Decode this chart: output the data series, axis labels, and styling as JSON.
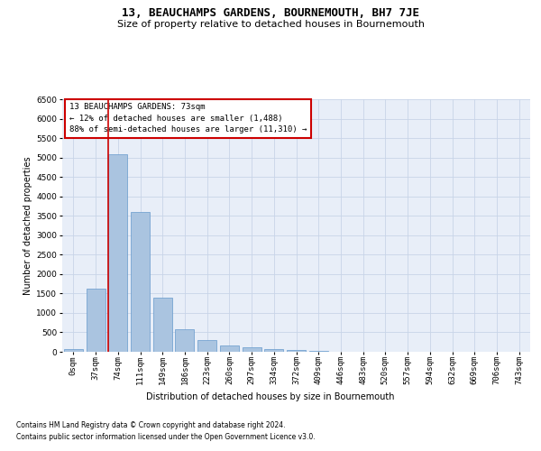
{
  "title": "13, BEAUCHAMPS GARDENS, BOURNEMOUTH, BH7 7JE",
  "subtitle": "Size of property relative to detached houses in Bournemouth",
  "xlabel": "Distribution of detached houses by size in Bournemouth",
  "ylabel": "Number of detached properties",
  "footnote1": "Contains HM Land Registry data © Crown copyright and database right 2024.",
  "footnote2": "Contains public sector information licensed under the Open Government Licence v3.0.",
  "annotation_title": "13 BEAUCHAMPS GARDENS: 73sqm",
  "annotation_line1": "← 12% of detached houses are smaller (1,488)",
  "annotation_line2": "88% of semi-detached houses are larger (11,310) →",
  "bar_labels": [
    "0sqm",
    "37sqm",
    "74sqm",
    "111sqm",
    "149sqm",
    "186sqm",
    "223sqm",
    "260sqm",
    "297sqm",
    "334sqm",
    "372sqm",
    "409sqm",
    "446sqm",
    "483sqm",
    "520sqm",
    "557sqm",
    "594sqm",
    "632sqm",
    "669sqm",
    "706sqm",
    "743sqm"
  ],
  "bar_values": [
    75,
    1620,
    5080,
    3600,
    1390,
    590,
    300,
    155,
    105,
    75,
    50,
    30,
    10,
    3,
    0,
    0,
    0,
    0,
    0,
    0,
    0
  ],
  "bar_color": "#aac4e0",
  "bar_edge_color": "#6699cc",
  "grid_color": "#c8d4e8",
  "background_color": "#e8eef8",
  "vline_color": "#cc0000",
  "annotation_box_color": "#ffffff",
  "annotation_box_edge": "#cc0000",
  "ylim_max": 6500,
  "ytick_step": 500,
  "title_fontsize": 9,
  "subtitle_fontsize": 8,
  "label_fontsize": 7,
  "tick_fontsize": 6.5,
  "annotation_fontsize": 6.5,
  "footnote_fontsize": 5.5
}
